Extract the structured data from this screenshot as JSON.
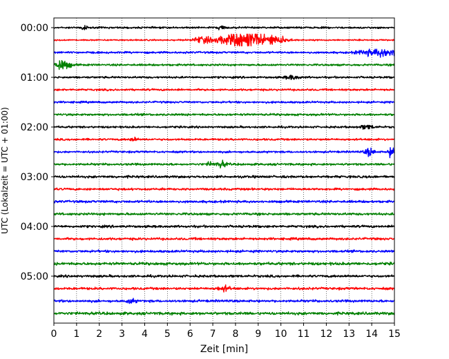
{
  "chart_data": {
    "type": "line",
    "chart_kind": "seismogram helicorder",
    "xlabel": "Zeit  [min]",
    "ylabel": "UTC (Lokalzeit = UTC + 01:00)",
    "xlim": [
      0,
      15
    ],
    "x_ticks": [
      "0",
      "1",
      "2",
      "3",
      "4",
      "5",
      "6",
      "7",
      "8",
      "9",
      "10",
      "11",
      "12",
      "13",
      "14",
      "15"
    ],
    "y_tick_labels": [
      "00:00",
      "01:00",
      "02:00",
      "03:00",
      "04:00",
      "05:00"
    ],
    "grid": "vertical dotted at each minute",
    "legend": "none",
    "trace_count": 24,
    "trace_interval_minutes": 15,
    "colors": [
      "#000000",
      "#ff0000",
      "#0000ff",
      "#008000"
    ],
    "traces": [
      {
        "start": "00:00",
        "color": "#000000",
        "noise": 0.9,
        "events": [
          {
            "t": 1.3,
            "amp": 2.0,
            "w": 0.15
          },
          {
            "t": 7.4,
            "amp": 2.5,
            "w": 0.15
          }
        ]
      },
      {
        "start": "00:15",
        "color": "#ff0000",
        "noise": 0.7,
        "events": [
          {
            "t": 8.4,
            "amp": 9.0,
            "w": 1.0
          },
          {
            "t": 6.5,
            "amp": 3.0,
            "w": 0.4
          },
          {
            "t": 9.8,
            "amp": 3.0,
            "w": 0.5
          }
        ]
      },
      {
        "start": "00:30",
        "color": "#0000ff",
        "noise": 1.0,
        "events": [
          {
            "t": 14.6,
            "amp": 4.0,
            "w": 0.6
          },
          {
            "t": 13.7,
            "amp": 2.0,
            "w": 0.4
          }
        ]
      },
      {
        "start": "00:45",
        "color": "#008000",
        "noise": 1.0,
        "events": [
          {
            "t": 0.3,
            "amp": 5.0,
            "w": 0.4
          }
        ]
      },
      {
        "start": "01:00",
        "color": "#000000",
        "noise": 1.0,
        "events": [
          {
            "t": 10.5,
            "amp": 2.0,
            "w": 0.3
          }
        ]
      },
      {
        "start": "01:15",
        "color": "#ff0000",
        "noise": 1.0,
        "events": []
      },
      {
        "start": "01:30",
        "color": "#0000ff",
        "noise": 1.0,
        "events": []
      },
      {
        "start": "01:45",
        "color": "#008000",
        "noise": 1.1,
        "events": []
      },
      {
        "start": "02:00",
        "color": "#000000",
        "noise": 1.0,
        "events": [
          {
            "t": 13.8,
            "amp": 2.0,
            "w": 0.3
          }
        ]
      },
      {
        "start": "02:15",
        "color": "#ff0000",
        "noise": 1.0,
        "events": [
          {
            "t": 3.5,
            "amp": 2.0,
            "w": 0.15
          }
        ]
      },
      {
        "start": "02:30",
        "color": "#0000ff",
        "noise": 1.0,
        "events": [
          {
            "t": 13.9,
            "amp": 4.0,
            "w": 0.2
          },
          {
            "t": 14.9,
            "amp": 6.0,
            "w": 0.15
          }
        ]
      },
      {
        "start": "02:45",
        "color": "#008000",
        "noise": 1.1,
        "events": [
          {
            "t": 7.4,
            "amp": 3.0,
            "w": 0.2
          },
          {
            "t": 6.9,
            "amp": 2.0,
            "w": 0.15
          }
        ]
      },
      {
        "start": "03:00",
        "color": "#000000",
        "noise": 1.2,
        "events": []
      },
      {
        "start": "03:15",
        "color": "#ff0000",
        "noise": 1.1,
        "events": []
      },
      {
        "start": "03:30",
        "color": "#0000ff",
        "noise": 1.2,
        "events": []
      },
      {
        "start": "03:45",
        "color": "#008000",
        "noise": 1.2,
        "events": []
      },
      {
        "start": "04:00",
        "color": "#000000",
        "noise": 1.2,
        "events": []
      },
      {
        "start": "04:15",
        "color": "#ff0000",
        "noise": 1.2,
        "events": []
      },
      {
        "start": "04:30",
        "color": "#0000ff",
        "noise": 1.2,
        "events": []
      },
      {
        "start": "04:45",
        "color": "#008000",
        "noise": 1.4,
        "events": []
      },
      {
        "start": "05:00",
        "color": "#000000",
        "noise": 1.2,
        "events": []
      },
      {
        "start": "05:15",
        "color": "#ff0000",
        "noise": 1.2,
        "events": [
          {
            "t": 7.5,
            "amp": 2.5,
            "w": 0.25
          }
        ]
      },
      {
        "start": "05:30",
        "color": "#0000ff",
        "noise": 1.2,
        "events": [
          {
            "t": 3.4,
            "amp": 2.0,
            "w": 0.2
          }
        ]
      },
      {
        "start": "05:45",
        "color": "#008000",
        "noise": 1.4,
        "events": []
      }
    ]
  }
}
